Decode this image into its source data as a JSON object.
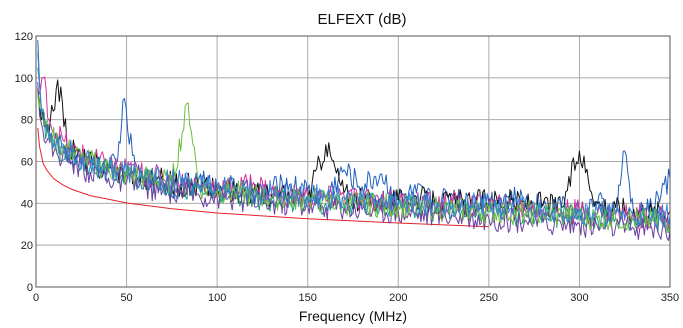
{
  "chart_data": {
    "type": "line",
    "title": "ELFEXT (dB)",
    "xlabel": "Frequency (MHz)",
    "ylabel": "",
    "xlim": [
      0,
      350
    ],
    "ylim": [
      0,
      120
    ],
    "xticks": [
      0,
      50,
      100,
      150,
      200,
      250,
      300,
      350
    ],
    "yticks": [
      0,
      20,
      40,
      60,
      80,
      100,
      120
    ],
    "grid": true,
    "legend": "none",
    "series": [
      {
        "color": "#e8202a",
        "role": "limit",
        "x": [
          1,
          2,
          4,
          6,
          10,
          15,
          20,
          30,
          50,
          75,
          100,
          150,
          200,
          250
        ],
        "y": [
          76,
          67,
          59,
          55.8,
          51.6,
          48.7,
          46.6,
          43.7,
          40.2,
          37.4,
          35.4,
          32.6,
          30.6,
          28.8
        ]
      },
      {
        "color": "#1f5fbf",
        "x": [
          1,
          3,
          6,
          10,
          15,
          20,
          25,
          30,
          35,
          40,
          45,
          48,
          55,
          60,
          70,
          80,
          90,
          100,
          110,
          120,
          130,
          140,
          150,
          160,
          170,
          180,
          190,
          200,
          210,
          220,
          230,
          240,
          250,
          260,
          270,
          280,
          290,
          300,
          310,
          320,
          325,
          330,
          340,
          350
        ],
        "y": [
          118,
          85,
          74,
          70,
          66,
          62,
          60,
          64,
          58,
          56,
          60,
          89,
          55,
          52,
          50,
          47,
          52,
          46,
          48,
          44,
          47,
          49,
          46,
          43,
          56,
          48,
          54,
          42,
          45,
          41,
          44,
          40,
          42,
          43,
          40,
          39,
          38,
          36,
          40,
          35,
          65,
          33,
          38,
          52
        ]
      },
      {
        "color": "#111111",
        "x": [
          1,
          3,
          7,
          12,
          18,
          25,
          32,
          40,
          50,
          60,
          70,
          80,
          90,
          100,
          110,
          120,
          130,
          140,
          150,
          160,
          170,
          180,
          190,
          200,
          210,
          220,
          230,
          240,
          250,
          260,
          270,
          280,
          290,
          300,
          310,
          320,
          330,
          340,
          350
        ],
        "y": [
          95,
          80,
          72,
          99,
          67,
          62,
          59,
          56,
          55,
          52,
          51,
          49,
          48,
          47,
          46,
          45,
          44,
          43,
          42,
          68,
          45,
          41,
          42,
          41,
          43,
          40,
          41,
          40,
          42,
          41,
          40,
          40,
          38,
          65,
          40,
          38,
          37,
          36,
          36
        ]
      },
      {
        "color": "#d62f9a",
        "x": [
          1,
          4,
          8,
          15,
          20,
          30,
          40,
          50,
          60,
          70,
          80,
          90,
          100,
          110,
          120,
          130,
          140,
          150,
          160,
          170,
          180,
          190,
          200,
          210,
          220,
          230,
          240,
          250,
          260,
          270,
          280,
          290,
          300,
          310,
          320,
          330,
          340,
          350
        ],
        "y": [
          90,
          100,
          78,
          70,
          65,
          61,
          58,
          56,
          54,
          52,
          50,
          48,
          48,
          46,
          50,
          45,
          44,
          43,
          42,
          44,
          41,
          42,
          40,
          41,
          39,
          40,
          38,
          39,
          38,
          37,
          37,
          36,
          36,
          35,
          35,
          34,
          34,
          33
        ]
      },
      {
        "color": "#1a9f8a",
        "x": [
          1,
          3,
          6,
          10,
          20,
          30,
          40,
          50,
          60,
          70,
          80,
          90,
          100,
          110,
          120,
          130,
          140,
          150,
          160,
          170,
          180,
          190,
          200,
          210,
          220,
          230,
          240,
          250,
          260,
          270,
          280,
          290,
          300,
          310,
          320,
          330,
          340,
          350
        ],
        "y": [
          105,
          82,
          74,
          68,
          62,
          58,
          55,
          53,
          51,
          49,
          48,
          47,
          45,
          44,
          43,
          42,
          42,
          41,
          40,
          40,
          39,
          39,
          38,
          38,
          37,
          37,
          36,
          36,
          35,
          35,
          35,
          34,
          34,
          33,
          33,
          32,
          32,
          31
        ]
      },
      {
        "color": "#6b3fa0",
        "x": [
          1,
          3,
          6,
          10,
          20,
          30,
          40,
          50,
          60,
          70,
          80,
          90,
          100,
          110,
          120,
          130,
          140,
          150,
          160,
          170,
          180,
          190,
          200,
          210,
          220,
          230,
          240,
          250,
          260,
          270,
          280,
          290,
          300,
          310,
          320,
          330,
          340,
          350
        ],
        "y": [
          98,
          78,
          70,
          65,
          60,
          55,
          52,
          50,
          48,
          46,
          45,
          44,
          43,
          42,
          41,
          40,
          40,
          39,
          38,
          38,
          37,
          37,
          36,
          35,
          35,
          34,
          33,
          33,
          32,
          32,
          31,
          30,
          30,
          29,
          29,
          28,
          28,
          27
        ]
      },
      {
        "color": "#6cbf3f",
        "x": [
          1,
          4,
          8,
          15,
          25,
          35,
          45,
          55,
          65,
          75,
          84,
          90,
          100,
          110,
          120,
          130,
          140,
          150,
          160,
          170,
          180,
          190,
          200,
          210,
          220,
          230,
          240,
          250,
          260,
          270,
          280,
          290,
          300,
          310,
          320,
          330,
          340,
          350
        ],
        "y": [
          92,
          80,
          72,
          67,
          62,
          58,
          55,
          53,
          52,
          50,
          88,
          48,
          46,
          45,
          44,
          43,
          42,
          42,
          41,
          40,
          40,
          39,
          39,
          38,
          38,
          37,
          37,
          36,
          36,
          35,
          35,
          34,
          34,
          33,
          33,
          32,
          32,
          31
        ]
      },
      {
        "color": "#3a7fd5",
        "x": [
          1,
          3,
          6,
          10,
          20,
          30,
          40,
          50,
          60,
          70,
          80,
          90,
          100,
          110,
          120,
          130,
          140,
          150,
          160,
          170,
          180,
          190,
          200,
          210,
          220,
          230,
          240,
          250,
          260,
          270,
          280,
          290,
          300,
          310,
          320,
          330,
          340,
          350
        ],
        "y": [
          112,
          84,
          76,
          70,
          64,
          60,
          57,
          55,
          53,
          51,
          50,
          49,
          48,
          47,
          46,
          45,
          44,
          44,
          43,
          43,
          42,
          42,
          41,
          41,
          40,
          40,
          39,
          39,
          38,
          38,
          37,
          37,
          36,
          36,
          35,
          35,
          34,
          34
        ]
      }
    ]
  }
}
